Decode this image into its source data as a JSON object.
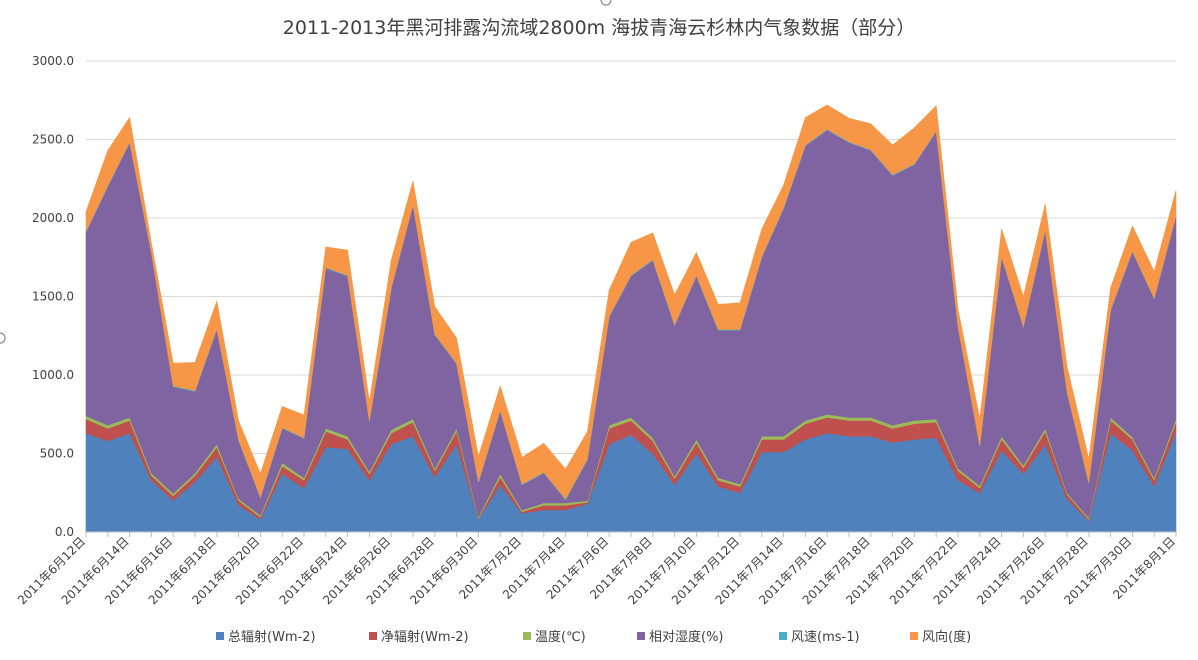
{
  "chart_data": {
    "type": "area",
    "stacked": true,
    "title": "2011-2013年黑河排露沟流域2800m 海拔青海云杉林内气象数据（部分）",
    "xlabel": "",
    "ylabel": "",
    "ylim": [
      0,
      3000
    ],
    "yticks": [
      "0.0",
      "500.0",
      "1000.0",
      "1500.0",
      "2000.0",
      "2500.0",
      "3000.0"
    ],
    "grid": true,
    "legend_position": "bottom",
    "x": [
      "2011年6月12日",
      "2011年6月13日",
      "2011年6月14日",
      "2011年6月15日",
      "2011年6月16日",
      "2011年6月17日",
      "2011年6月18日",
      "2011年6月19日",
      "2011年6月20日",
      "2011年6月21日",
      "2011年6月22日",
      "2011年6月23日",
      "2011年6月24日",
      "2011年6月25日",
      "2011年6月26日",
      "2011年6月27日",
      "2011年6月28日",
      "2011年6月29日",
      "2011年6月30日",
      "2011年7月1日",
      "2011年7月2日",
      "2011年7月3日",
      "2011年7月4日",
      "2011年7月5日",
      "2011年7月6日",
      "2011年7月7日",
      "2011年7月8日",
      "2011年7月9日",
      "2011年7月10日",
      "2011年7月11日",
      "2011年7月12日",
      "2011年7月13日",
      "2011年7月14日",
      "2011年7月15日",
      "2011年7月16日",
      "2011年7月17日",
      "2011年7月18日",
      "2011年7月19日",
      "2011年7月20日",
      "2011年7月21日",
      "2011年7月22日",
      "2011年7月23日",
      "2011年7月24日",
      "2011年7月25日",
      "2011年7月26日",
      "2011年7月27日",
      "2011年7月28日",
      "2011年7月29日",
      "2011年7月30日",
      "2011年7月31日",
      "2011年8月1日"
    ],
    "tick_labels": [
      "2011年6月12日",
      "2011年6月14日",
      "2011年6月16日",
      "2011年6月18日",
      "2011年6月20日",
      "2011年6月22日",
      "2011年6月24日",
      "2011年6月26日",
      "2011年6月28日",
      "2011年6月30日",
      "2011年7月2日",
      "2011年7月4日",
      "2011年7月6日",
      "2011年7月8日",
      "2011年7月10日",
      "2011年7月12日",
      "2011年7月14日",
      "2011年7月16日",
      "2011年7月18日",
      "2011年7月20日",
      "2011年7月22日",
      "2011年7月24日",
      "2011年7月26日",
      "2011年7月28日",
      "2011年7月30日",
      "2011年8月1日"
    ],
    "series": [
      {
        "name": "总辐射(Wm-2)",
        "color": "#4f81bd",
        "values": [
          630,
          580,
          630,
          330,
          200,
          320,
          480,
          170,
          80,
          370,
          280,
          540,
          530,
          330,
          560,
          610,
          350,
          560,
          80,
          300,
          120,
          140,
          140,
          180,
          560,
          620,
          500,
          300,
          500,
          290,
          250,
          510,
          510,
          590,
          630,
          610,
          610,
          570,
          590,
          600,
          330,
          250,
          520,
          370,
          560,
          210,
          70,
          630,
          520,
          290,
          640
        ]
      },
      {
        "name": "净辐射(Wm-2)",
        "color": "#c0504d",
        "values": [
          90,
          80,
          80,
          30,
          30,
          40,
          60,
          30,
          15,
          50,
          50,
          100,
          60,
          40,
          70,
          90,
          40,
          80,
          5,
          50,
          10,
          30,
          30,
          10,
          100,
          90,
          80,
          40,
          70,
          40,
          40,
          80,
          80,
          100,
          100,
          100,
          100,
          90,
          100,
          100,
          60,
          30,
          70,
          40,
          80,
          30,
          10,
          80,
          70,
          40,
          60
        ]
      },
      {
        "name": "温度(℃)",
        "color": "#9bbb59",
        "values": [
          20,
          20,
          20,
          15,
          15,
          15,
          20,
          12,
          12,
          20,
          15,
          20,
          20,
          15,
          20,
          20,
          15,
          20,
          10,
          20,
          10,
          15,
          15,
          10,
          20,
          20,
          20,
          15,
          20,
          15,
          15,
          20,
          20,
          20,
          20,
          20,
          20,
          20,
          20,
          20,
          15,
          15,
          20,
          15,
          20,
          10,
          10,
          20,
          15,
          15,
          20
        ]
      },
      {
        "name": "相对湿度(%)",
        "color": "#8064a2",
        "values": [
          1170,
          1520,
          1750,
          1400,
          680,
          520,
          730,
          370,
          110,
          220,
          250,
          1020,
          1020,
          320,
          900,
          1360,
          850,
          410,
          220,
          400,
          160,
          190,
          20,
          260,
          690,
          900,
          1130,
          960,
          1040,
          940,
          980,
          1140,
          1450,
          1750,
          1810,
          1750,
          1700,
          1590,
          1630,
          1830,
          900,
          250,
          1140,
          880,
          1260,
          640,
          220,
          680,
          1180,
          1140,
          1290
        ]
      },
      {
        "name": "风速(ms-1)",
        "color": "#4bacc6",
        "values": [
          5,
          5,
          5,
          5,
          5,
          5,
          5,
          5,
          5,
          5,
          5,
          5,
          5,
          5,
          5,
          5,
          5,
          5,
          5,
          5,
          5,
          5,
          5,
          5,
          5,
          5,
          5,
          5,
          5,
          5,
          5,
          5,
          5,
          5,
          5,
          5,
          5,
          5,
          5,
          5,
          5,
          5,
          5,
          5,
          5,
          5,
          5,
          5,
          5,
          5,
          5
        ]
      },
      {
        "name": "风向(度)",
        "color": "#f79646",
        "values": [
          125,
          225,
          155,
          60,
          145,
          180,
          175,
          120,
          150,
          135,
          145,
          130,
          160,
          120,
          175,
          150,
          175,
          160,
          160,
          155,
          170,
          185,
          190,
          175,
          165,
          210,
          170,
          190,
          145,
          160,
          170,
          175,
          145,
          175,
          155,
          150,
          165,
          190,
          230,
          160,
          110,
          170,
          175,
          190,
          165,
          160,
          150,
          140,
          160,
          170,
          160
        ]
      }
    ]
  }
}
